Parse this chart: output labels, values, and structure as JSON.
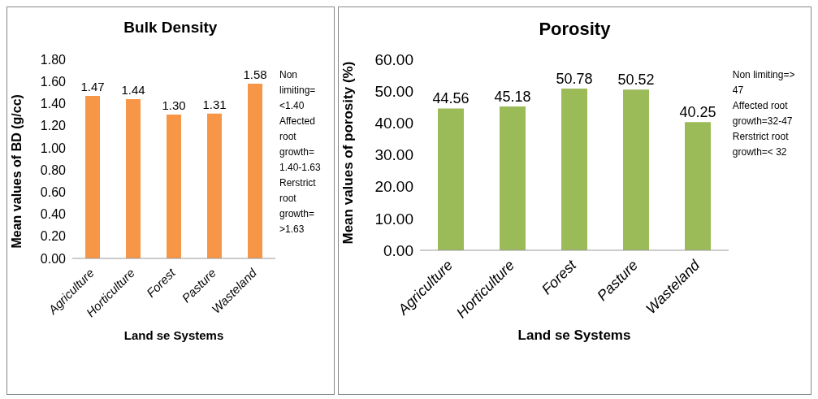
{
  "chart_data": [
    {
      "type": "bar",
      "title": "Bulk Density",
      "xlabel": "Land se Systems",
      "ylabel": "Mean values of BD (g/cc)",
      "categories": [
        "Agriculture",
        "Horticulture",
        "Forest",
        "Pasture",
        "Wasteland"
      ],
      "values": [
        1.47,
        1.44,
        1.3,
        1.31,
        1.58
      ],
      "value_labels": [
        "1.47",
        "1.44",
        "1.30",
        "1.31",
        "1.58"
      ],
      "color": "#f79646",
      "ylim": [
        0,
        1.8
      ],
      "yticks": [
        {
          "value": 0,
          "label": "0.00"
        },
        {
          "value": 0.2,
          "label": "0.20"
        },
        {
          "value": 0.4,
          "label": "0.40"
        },
        {
          "value": 0.6,
          "label": "0.60"
        },
        {
          "value": 0.8,
          "label": "0.80"
        },
        {
          "value": 1.0,
          "label": "1.00"
        },
        {
          "value": 1.2,
          "label": "1.20"
        },
        {
          "value": 1.4,
          "label": "1.40"
        },
        {
          "value": 1.6,
          "label": "1.60"
        },
        {
          "value": 1.8,
          "label": "1.80"
        }
      ],
      "grid": false,
      "annotations": [
        "Non limiting= <1.40",
        "Affected root growth= 1.40-1.63",
        "Rerstrict root growth= >1.63"
      ]
    },
    {
      "type": "bar",
      "title": "Porosity",
      "xlabel": "Land se Systems",
      "ylabel": "Mean values of porosity (%)",
      "categories": [
        "Agriculture",
        "Horticulture",
        "Forest",
        "Pasture",
        "Wasteland"
      ],
      "values": [
        44.56,
        45.18,
        50.78,
        50.52,
        40.25
      ],
      "data_labels": true,
      "color": "#9bbb59",
      "ylim": [
        0,
        60
      ],
      "yticks": [
        {
          "value": 0,
          "label": "0.00"
        },
        {
          "value": 10,
          "label": "10.00"
        },
        {
          "value": 20,
          "label": "20.00"
        },
        {
          "value": 30,
          "label": "30.00"
        },
        {
          "value": 40,
          "label": "40.00"
        },
        {
          "value": 50,
          "label": "50.00"
        },
        {
          "value": 60,
          "label": "60.00"
        }
      ],
      "grid": false,
      "annotations": [
        "Non limiting=> 47",
        "Affected root growth=32-47",
        "Rerstrict root growth=< 32"
      ]
    }
  ]
}
